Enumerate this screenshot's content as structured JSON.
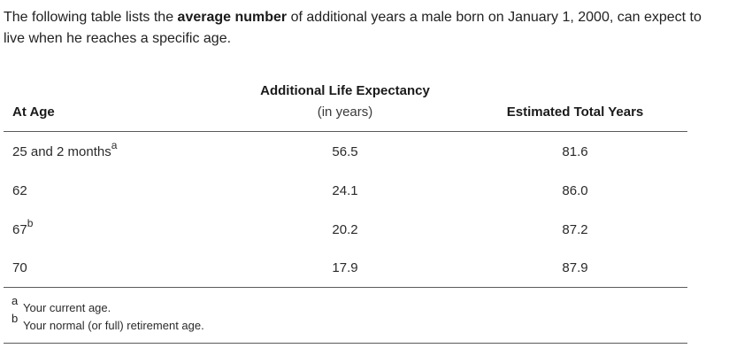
{
  "intro": {
    "before": "The following table lists the ",
    "bold": "average number",
    "after": " of additional years a male born on January 1, 2000, can expect to live when he reaches a specific age."
  },
  "table": {
    "headers": {
      "age": "At Age",
      "expectancy_title": "Additional Life Expectancy",
      "expectancy_unit": "(in years)",
      "total": "Estimated Total Years"
    },
    "rows": [
      {
        "age": "25 and 2 months",
        "marker": "a",
        "expectancy": "56.5",
        "total": "81.6"
      },
      {
        "age": "62",
        "marker": "",
        "expectancy": "24.1",
        "total": "86.0"
      },
      {
        "age": "67",
        "marker": "b",
        "expectancy": "20.2",
        "total": "87.2"
      },
      {
        "age": "70",
        "marker": "",
        "expectancy": "17.9",
        "total": "87.9"
      }
    ]
  },
  "footnotes": [
    {
      "letter": "a",
      "text": "Your current age."
    },
    {
      "letter": "b",
      "text": "Your normal (or full) retirement age."
    }
  ]
}
